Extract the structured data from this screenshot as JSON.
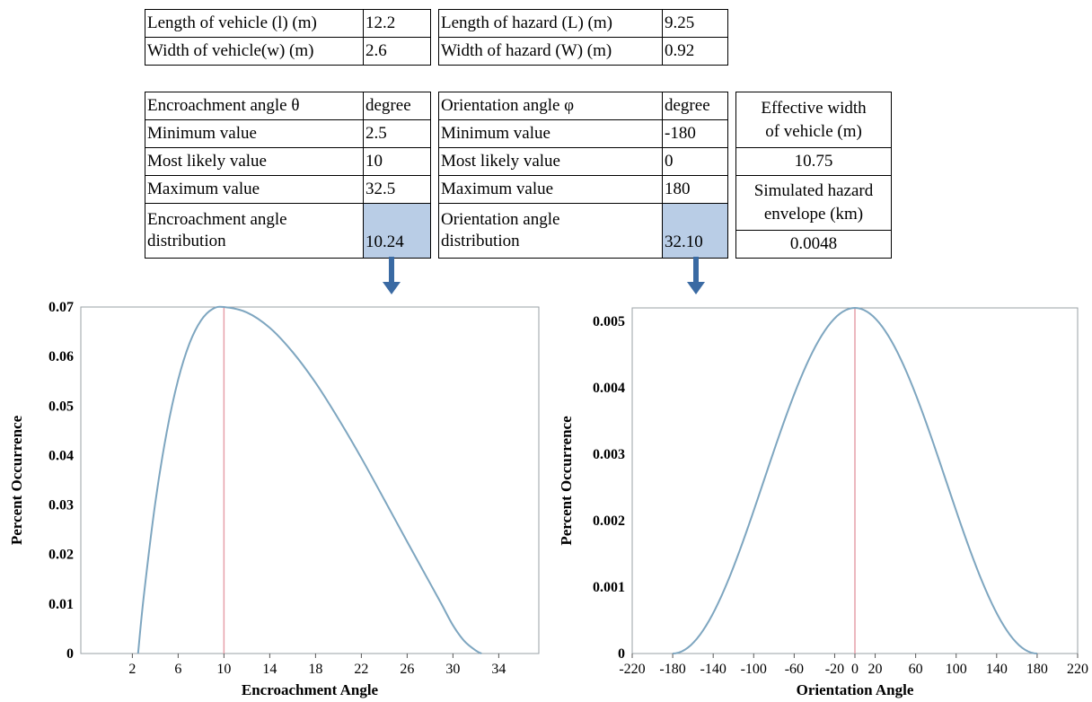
{
  "table1": {
    "rows": [
      [
        "Length of vehicle (l) (m)",
        "12.2",
        "Length of hazard (L) (m)",
        "9.25"
      ],
      [
        "Width of vehicle(w) (m)",
        "2.6",
        "Width of hazard (W) (m)",
        "0.92"
      ]
    ]
  },
  "table2": {
    "header": [
      "Encroachment angle θ",
      "degree",
      "Orientation angle φ",
      "degree"
    ],
    "rows": [
      [
        "Minimum value",
        "2.5",
        "Minimum value",
        "-180"
      ],
      [
        "Most likely value",
        "10",
        "Most likely value",
        "0"
      ],
      [
        "Maximum value",
        "32.5",
        "Maximum value",
        "180"
      ]
    ],
    "dist": {
      "left_label": "Encroachment angle distribution",
      "left_label_l1": "Encroachment angle",
      "left_label_l2": "distribution",
      "left_value": "10.24",
      "right_label_l1": "Orientation angle",
      "right_label_l2": "distribution",
      "right_value": "32.10"
    },
    "side": {
      "eff_width_l1": "Effective width",
      "eff_width_l2": "of vehicle (m)",
      "eff_width_value": "10.75",
      "envelope_l1": "Simulated hazard",
      "envelope_l2": "envelope (km)",
      "envelope_value": "0.0048"
    }
  },
  "colors": {
    "curve": "#7ea6c0",
    "mode_line": "#e6a0aa",
    "arrow": "#3a6aa3",
    "highlight": "#b9cde6"
  },
  "chart_data": [
    {
      "type": "line",
      "distribution": "triangular-smooth",
      "min": 2.5,
      "mode": 10,
      "max": 32.5,
      "peak": 0.07,
      "xlabel": "Encroachment Angle",
      "ylabel": "Percent Occurrence",
      "xlim": [
        -2.5,
        37.5
      ],
      "ylim": [
        0,
        0.07
      ],
      "xticks": [
        2,
        6,
        10,
        14,
        18,
        22,
        26,
        30,
        34
      ],
      "yticks": [
        0,
        0.01,
        0.02,
        0.03,
        0.04,
        0.05,
        0.06,
        0.07
      ],
      "ytick_labels": [
        "0",
        "0.01",
        "0.02",
        "0.03",
        "0.04",
        "0.05",
        "0.06",
        "0.07"
      ],
      "mode_line_x": 10,
      "points": [
        [
          2.5,
          0
        ],
        [
          3,
          0.0116
        ],
        [
          4,
          0.0304
        ],
        [
          5,
          0.0447
        ],
        [
          6,
          0.0553
        ],
        [
          7,
          0.0627
        ],
        [
          8,
          0.0673
        ],
        [
          9,
          0.0696
        ],
        [
          10,
          0.07
        ],
        [
          12,
          0.0689
        ],
        [
          14,
          0.0658
        ],
        [
          16,
          0.0609
        ],
        [
          18,
          0.0547
        ],
        [
          20,
          0.0474
        ],
        [
          22,
          0.0395
        ],
        [
          24,
          0.0311
        ],
        [
          26,
          0.0226
        ],
        [
          28,
          0.0142
        ],
        [
          29,
          0.01
        ],
        [
          30,
          0.0057
        ],
        [
          31,
          0.0025
        ],
        [
          32,
          0.0006
        ],
        [
          32.5,
          0
        ]
      ]
    },
    {
      "type": "line",
      "distribution": "bell",
      "min": -180,
      "mode": 0,
      "max": 180,
      "peak": 0.0052,
      "xlabel": "Orientation Angle",
      "ylabel": "Percent Occurrence",
      "xlim": [
        -220,
        220
      ],
      "ylim": [
        0,
        0.0052
      ],
      "xticks": [
        -220,
        -180,
        -140,
        -100,
        -60,
        -20,
        0,
        20,
        60,
        100,
        140,
        180,
        220
      ],
      "yticks": [
        0,
        0.001,
        0.002,
        0.003,
        0.004,
        0.005
      ],
      "ytick_labels": [
        "0",
        "0.001",
        "0.002",
        "0.003",
        "0.004",
        "0.005"
      ],
      "mode_line_x": 0
    }
  ]
}
